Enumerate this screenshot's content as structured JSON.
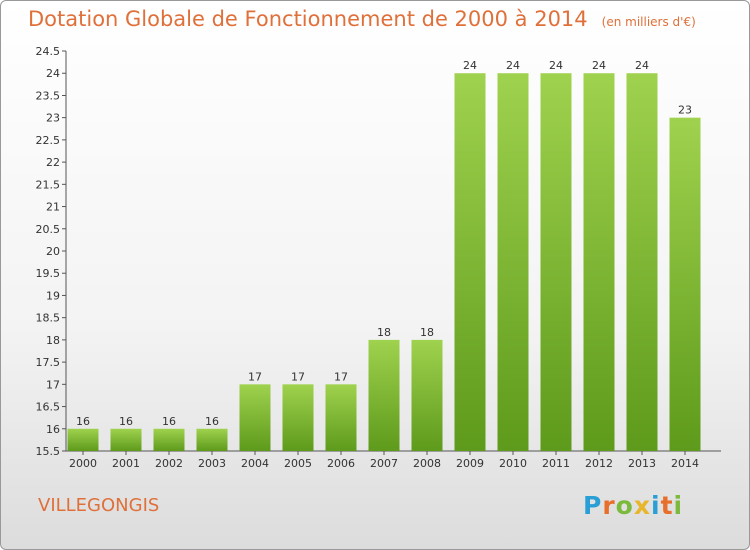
{
  "header": {
    "title": "Dotation Globale de Fonctionnement de 2000 à 2014",
    "unit": "(en milliers d'€)"
  },
  "town": "VILLEGONGIS",
  "logo": {
    "text": "Proxiti",
    "letters": [
      {
        "ch": "P",
        "color": "#2a9fd6"
      },
      {
        "ch": "r",
        "color": "#e86f2b"
      },
      {
        "ch": "o",
        "color": "#7cba3d"
      },
      {
        "ch": "x",
        "color": "#e8b62b"
      },
      {
        "ch": "i",
        "color": "#2a9fd6"
      },
      {
        "ch": "t",
        "color": "#e86f2b"
      },
      {
        "ch": "i",
        "color": "#7cba3d"
      }
    ]
  },
  "chart_data": {
    "type": "bar",
    "categories": [
      "2000",
      "2001",
      "2002",
      "2003",
      "2004",
      "2005",
      "2006",
      "2007",
      "2008",
      "2009",
      "2010",
      "2011",
      "2012",
      "2013",
      "2014"
    ],
    "values": [
      16,
      16,
      16,
      16,
      17,
      17,
      17,
      18,
      18,
      24,
      24,
      24,
      24,
      24,
      23
    ],
    "title": "Dotation Globale de Fonctionnement de 2000 à 2014",
    "ylim": [
      15.5,
      24.5
    ],
    "yticks": [
      15.5,
      16,
      16.5,
      17,
      17.5,
      18,
      18.5,
      19,
      19.5,
      20,
      20.5,
      21,
      21.5,
      22,
      22.5,
      23,
      23.5,
      24,
      24.5
    ],
    "grid": false,
    "bar_color_top": "#9fd24e",
    "bar_color_bottom": "#5e9a1b"
  }
}
